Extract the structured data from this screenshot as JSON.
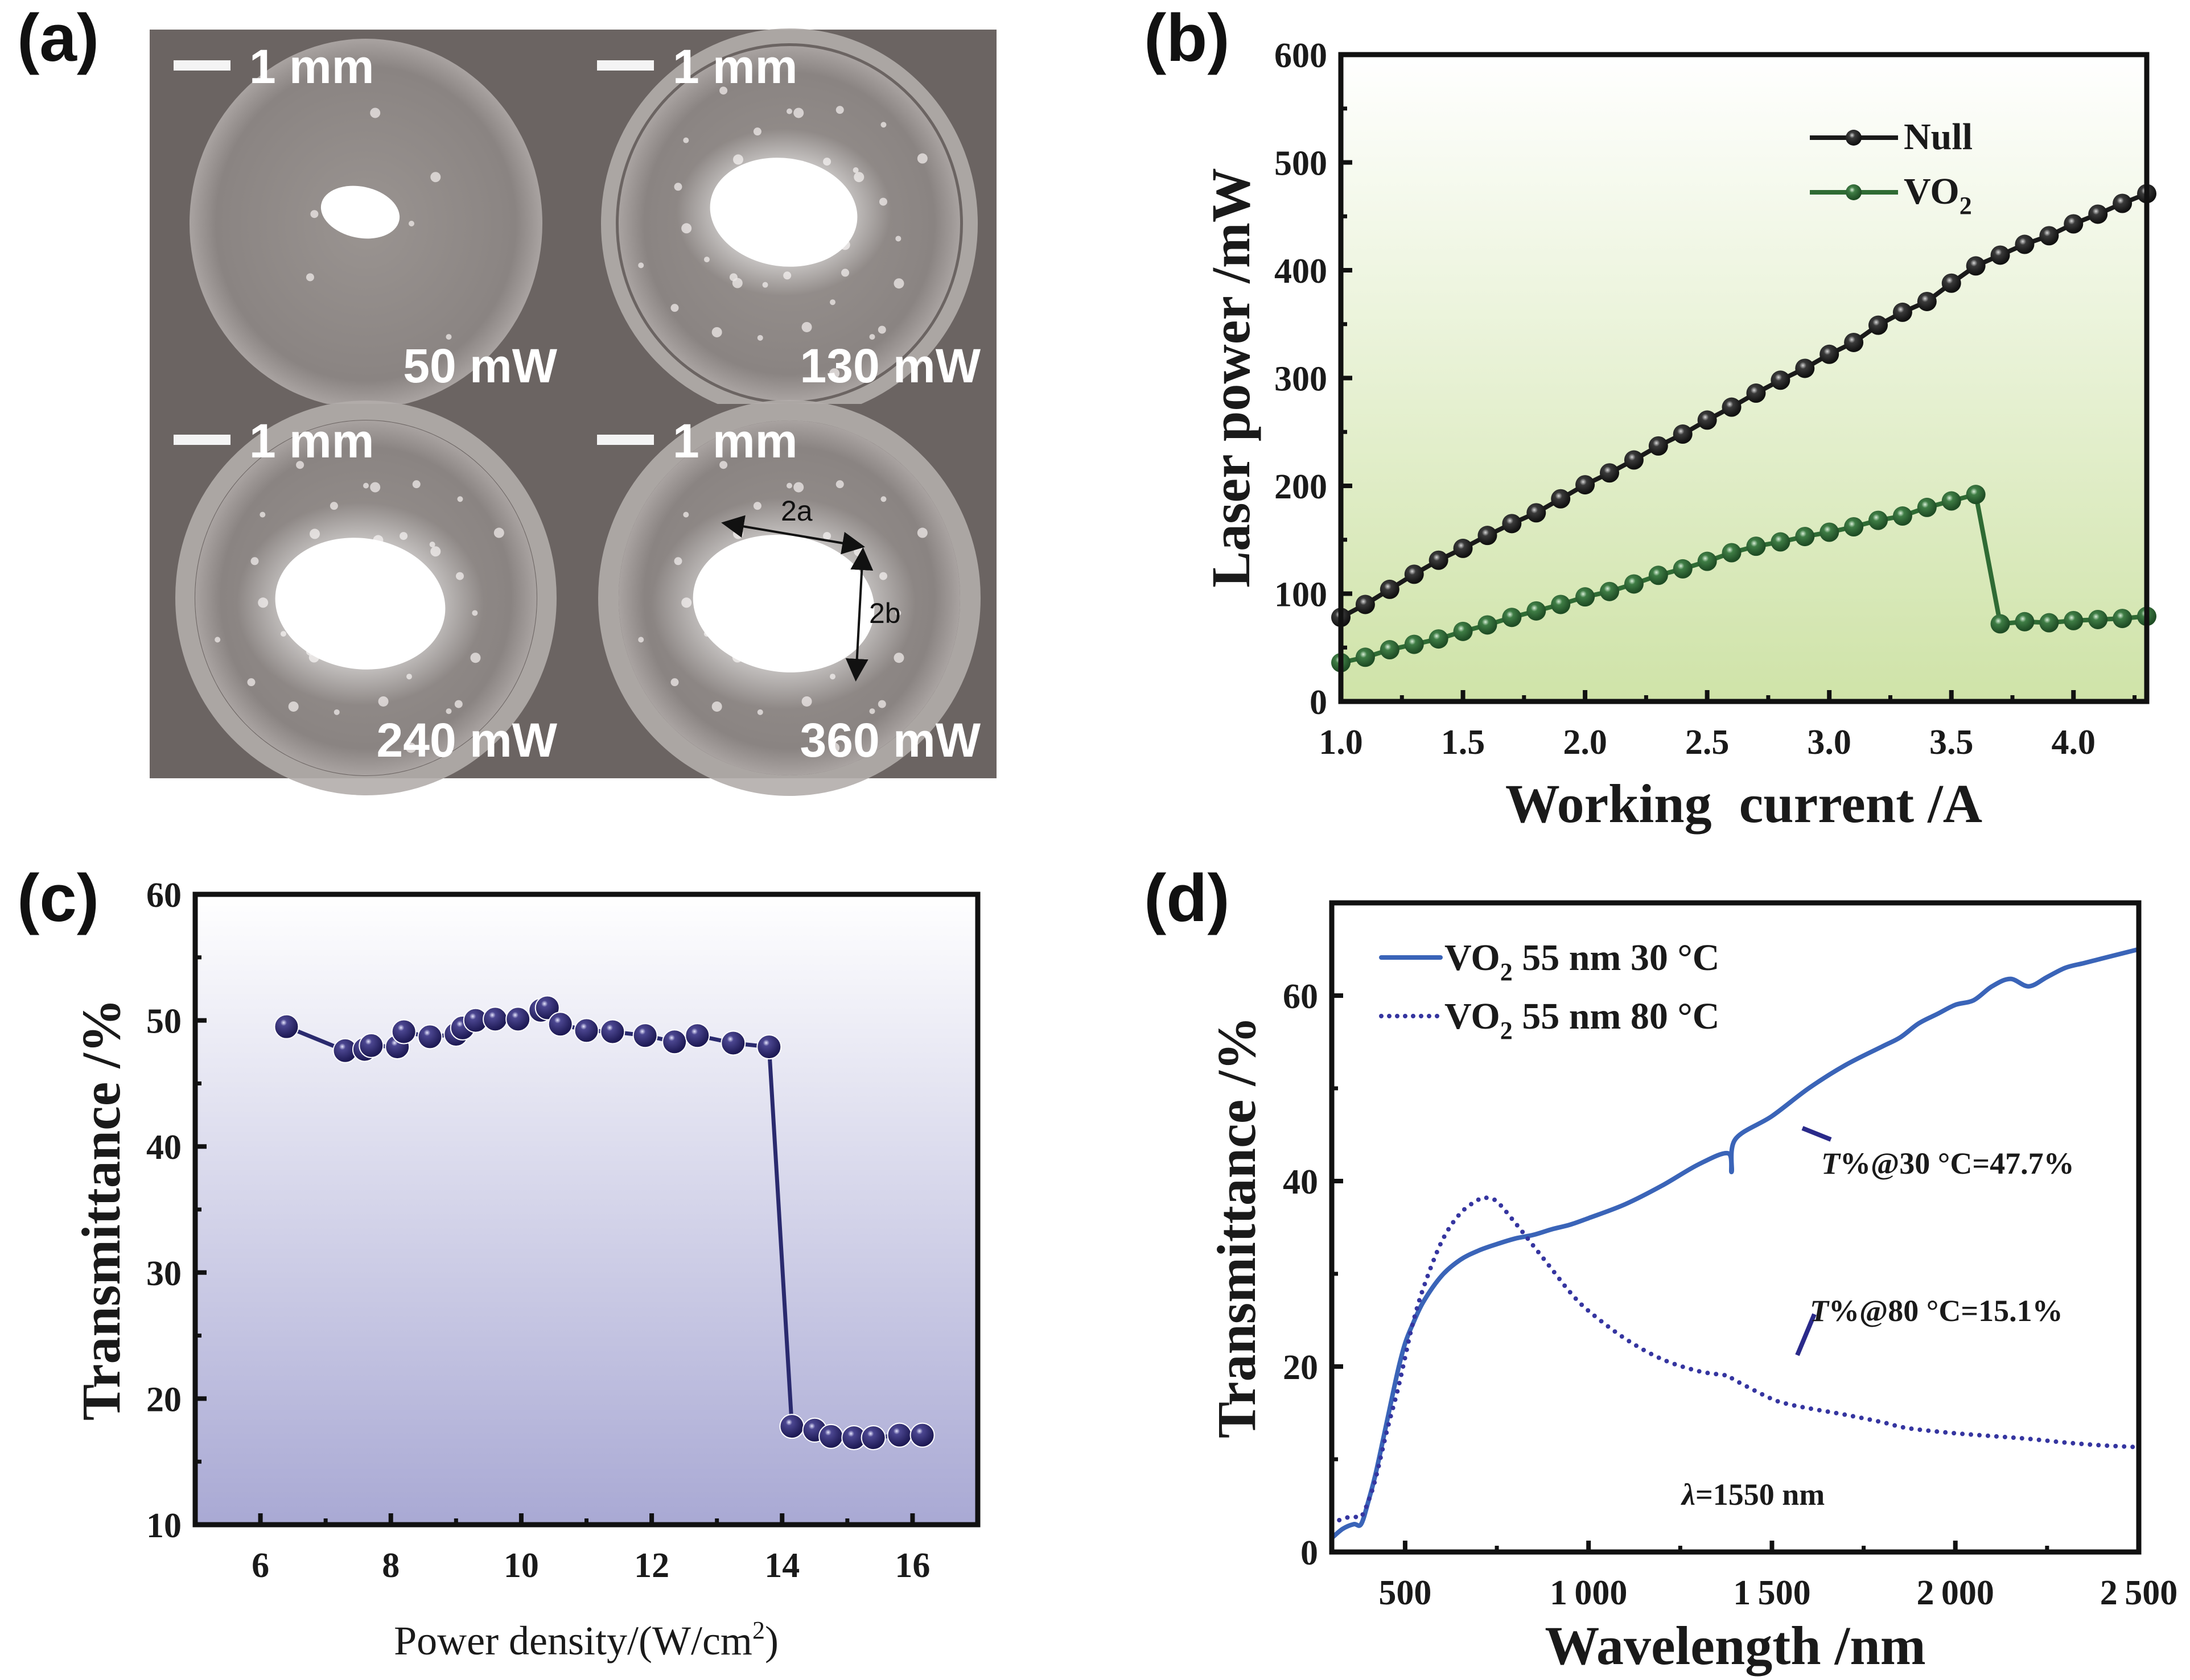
{
  "panel_labels": {
    "a": "(a)",
    "b": "(b)",
    "c": "(c)",
    "d": "(d)"
  },
  "panel_a": {
    "images": [
      {
        "scale_bar": "1 mm",
        "power_label": "50 mW"
      },
      {
        "scale_bar": "1 mm",
        "power_label": "130 mW"
      },
      {
        "scale_bar": "1 mm",
        "power_label": "240 mW"
      },
      {
        "scale_bar": "1 mm",
        "power_label": "360 mW",
        "dimension_labels": [
          "2a",
          "2b"
        ]
      }
    ],
    "colors": {
      "background": "#6b6462",
      "disk": "#8f8987",
      "spot": "#ffffff"
    }
  },
  "chart_data": [
    {
      "id": "b",
      "type": "line",
      "title": "",
      "xlabel": "Working  current /A",
      "ylabel": "Laser power /mW",
      "xlim": [
        1.0,
        4.3
      ],
      "ylim": [
        0,
        600
      ],
      "xticks": [
        1.0,
        1.5,
        2.0,
        2.5,
        3.0,
        3.5,
        4.0
      ],
      "xtick_labels": [
        "1.0",
        "1.5",
        "2.0",
        "2.5",
        "3.0",
        "3.5",
        "4.0"
      ],
      "yticks": [
        0,
        100,
        200,
        300,
        400,
        500,
        600
      ],
      "ytick_labels": [
        "0",
        "100",
        "200",
        "300",
        "400",
        "500",
        "600"
      ],
      "grid": false,
      "legend_position": "top-right",
      "background": "gradient white-to-green",
      "series": [
        {
          "name": "Null",
          "legend": "Null",
          "color": "#1a1a1a",
          "marker": "sphere",
          "x": [
            1.0,
            1.1,
            1.2,
            1.3,
            1.4,
            1.5,
            1.6,
            1.7,
            1.8,
            1.9,
            2.0,
            2.1,
            2.2,
            2.3,
            2.4,
            2.5,
            2.6,
            2.7,
            2.8,
            2.9,
            3.0,
            3.1,
            3.2,
            3.3,
            3.4,
            3.5,
            3.6,
            3.7,
            3.8,
            3.9,
            4.0,
            4.1,
            4.2,
            4.3
          ],
          "y": [
            78,
            90,
            104,
            118,
            131,
            142,
            154,
            165,
            175,
            188,
            201,
            212,
            224,
            237,
            248,
            261,
            273,
            286,
            298,
            309,
            322,
            333,
            349,
            361,
            371,
            388,
            404,
            414,
            424,
            432,
            443,
            452,
            462,
            471
          ]
        },
        {
          "name": "VO2",
          "legend": "VO",
          "legend_sub": "2",
          "color": "#2f6b34",
          "marker": "sphere",
          "x": [
            1.0,
            1.1,
            1.2,
            1.3,
            1.4,
            1.5,
            1.6,
            1.7,
            1.8,
            1.9,
            2.0,
            2.1,
            2.2,
            2.3,
            2.4,
            2.5,
            2.6,
            2.7,
            2.8,
            2.9,
            3.0,
            3.1,
            3.2,
            3.3,
            3.4,
            3.5,
            3.6,
            3.7,
            3.8,
            3.9,
            4.0,
            4.1,
            4.2,
            4.3
          ],
          "y": [
            36,
            41,
            48,
            53,
            58,
            65,
            71,
            78,
            84,
            90,
            97,
            102,
            109,
            117,
            123,
            130,
            138,
            144,
            148,
            153,
            157,
            162,
            168,
            172,
            180,
            186,
            192,
            72,
            74,
            73,
            75,
            76,
            77,
            79
          ]
        }
      ]
    },
    {
      "id": "c",
      "type": "line",
      "title": "",
      "xlabel": "Power density/(W/cm",
      "xlabel_sup": "2",
      "xlabel_end": ")",
      "ylabel": "Transmittance /%",
      "xlim": [
        5,
        17
      ],
      "ylim": [
        10,
        60
      ],
      "xticks": [
        6,
        8,
        10,
        12,
        14,
        16
      ],
      "xtick_labels": [
        "6",
        "8",
        "10",
        "12",
        "14",
        "16"
      ],
      "yticks": [
        10,
        20,
        30,
        40,
        50,
        60
      ],
      "ytick_labels": [
        "10",
        "20",
        "30",
        "40",
        "50",
        "60"
      ],
      "grid": false,
      "background": "gradient white-to-lavender",
      "series": [
        {
          "name": "Transmittance",
          "color": "#2a2a6e",
          "marker": "sphere",
          "x": [
            6.4,
            7.3,
            7.6,
            7.7,
            8.1,
            8.2,
            8.6,
            9.0,
            9.1,
            9.3,
            9.6,
            9.95,
            10.3,
            10.4,
            10.6,
            11.0,
            11.4,
            11.9,
            12.35,
            12.7,
            13.25,
            13.8,
            14.15,
            14.5,
            14.75,
            15.1,
            15.4,
            15.8,
            16.15
          ],
          "y": [
            49.5,
            47.6,
            47.7,
            48.0,
            47.9,
            49.1,
            48.7,
            48.9,
            49.4,
            50.0,
            50.1,
            50.1,
            50.8,
            51.0,
            49.7,
            49.2,
            49.1,
            48.8,
            48.3,
            48.8,
            48.2,
            47.9,
            17.8,
            17.5,
            17.0,
            16.9,
            16.9,
            17.1,
            17.1
          ]
        }
      ]
    },
    {
      "id": "d",
      "type": "line",
      "title": "",
      "xlabel": "Wavelength /nm",
      "ylabel": "Transmittance /%",
      "xlim": [
        300,
        2500
      ],
      "ylim": [
        0,
        70
      ],
      "xticks": [
        500,
        1000,
        1500,
        2000,
        2500
      ],
      "xtick_labels": [
        "500",
        "1 000",
        "1 500",
        "2 000",
        "2 500"
      ],
      "yticks": [
        0,
        20,
        40,
        60
      ],
      "ytick_labels": [
        "0",
        "20",
        "40",
        "60"
      ],
      "grid": false,
      "legend_position": "top-left",
      "series": [
        {
          "name": "VO2 55 nm 30 °C",
          "legend": [
            "VO",
            "2",
            " 55 nm 30 °C"
          ],
          "color": "#3a64b8",
          "style": "solid",
          "x": [
            300,
            330,
            360,
            380,
            400,
            420,
            450,
            480,
            500,
            520,
            550,
            600,
            650,
            700,
            750,
            800,
            850,
            900,
            950,
            1000,
            1100,
            1200,
            1300,
            1380,
            1390,
            1400,
            1500,
            1600,
            1700,
            1800,
            1850,
            1900,
            1950,
            2000,
            2050,
            2100,
            2150,
            2200,
            2250,
            2300,
            2350,
            2400,
            2450,
            2500
          ],
          "y": [
            1.5,
            2.5,
            3.0,
            3.0,
            5.5,
            8.5,
            14,
            19.5,
            22.5,
            24.5,
            27,
            29.8,
            31.5,
            32.5,
            33.2,
            33.8,
            34.2,
            34.8,
            35.3,
            36,
            37.5,
            39.5,
            41.8,
            43,
            41,
            44.5,
            47,
            50,
            52.5,
            54.5,
            55.5,
            57,
            58,
            59,
            59.5,
            61,
            61.8,
            61,
            62,
            63,
            63.5,
            64,
            64.5,
            65
          ]
        },
        {
          "name": "VO2 55 nm 80 °C",
          "legend": [
            "VO",
            "2",
            " 55 nm 80 °C"
          ],
          "color": "#3535a0",
          "style": "dotted",
          "x": [
            300,
            330,
            360,
            380,
            400,
            420,
            450,
            480,
            500,
            520,
            550,
            600,
            650,
            700,
            720,
            750,
            800,
            850,
            900,
            950,
            1000,
            1100,
            1200,
            1300,
            1380,
            1400,
            1500,
            1550,
            1600,
            1700,
            1800,
            1850,
            1900,
            2000,
            2100,
            2200,
            2300,
            2400,
            2500
          ],
          "y": [
            3.0,
            3.6,
            3.8,
            3.8,
            5.5,
            8,
            13,
            17.5,
            21,
            24.5,
            28.5,
            33.5,
            36.5,
            38,
            38.2,
            37.8,
            35.5,
            33,
            30.5,
            28,
            26,
            23,
            20.8,
            19.5,
            19,
            18.5,
            16.5,
            15.9,
            15.5,
            14.8,
            14.0,
            13.5,
            13.2,
            12.8,
            12.5,
            12.2,
            11.8,
            11.5,
            11.3
          ]
        }
      ],
      "annotations": [
        {
          "prefix_italic": "T",
          "text": "%@30 °C=47.7%",
          "points_to": {
            "x": 1550,
            "y": 47.7
          }
        },
        {
          "prefix_italic": "T",
          "text": "%@80 °C=15.1%",
          "points_to": {
            "x": 1550,
            "y": 15.1
          }
        },
        {
          "prefix_italic": "λ",
          "text": "=1550 nm"
        }
      ]
    }
  ]
}
